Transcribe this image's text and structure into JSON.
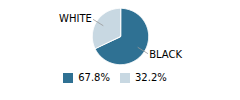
{
  "chart_data": {
    "type": "pie",
    "categories": [
      "BLACK",
      "WHITE"
    ],
    "values": [
      67.8,
      32.2
    ],
    "value_labels": [
      "67.8%",
      "32.2%"
    ],
    "colors": [
      "#2f7193",
      "#c8d8e2"
    ],
    "legend": "bottom"
  }
}
